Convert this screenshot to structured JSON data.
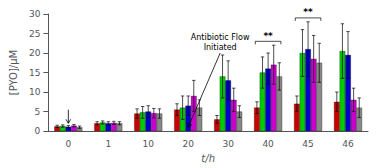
{
  "chart_data": {
    "type": "bar",
    "xlabel": "t/h",
    "ylabel": "[PYO]/μM",
    "categories": [
      "0",
      "1",
      "10",
      "20",
      "30",
      "40",
      "45",
      "46"
    ],
    "series": [
      {
        "color": "#cc0000",
        "values": [
          1.2,
          2.0,
          4.5,
          5.5,
          3.0,
          6.0,
          7.0,
          7.5
        ],
        "errors": [
          0.3,
          0.4,
          1.2,
          1.5,
          1.0,
          1.5,
          2.0,
          2.5
        ]
      },
      {
        "color": "#00cc00",
        "values": [
          1.3,
          2.2,
          4.8,
          6.0,
          14.0,
          15.0,
          20.0,
          20.5
        ],
        "errors": [
          0.3,
          0.4,
          1.5,
          3.0,
          5.5,
          4.0,
          6.0,
          7.0
        ]
      },
      {
        "color": "#0000cc",
        "values": [
          1.1,
          2.0,
          5.0,
          6.5,
          13.0,
          16.0,
          21.0,
          19.5
        ],
        "errors": [
          0.3,
          0.4,
          1.5,
          2.5,
          5.0,
          4.0,
          7.0,
          6.0
        ]
      },
      {
        "color": "#cc00cc",
        "values": [
          1.4,
          2.1,
          4.6,
          9.0,
          8.0,
          17.0,
          18.5,
          8.0
        ],
        "errors": [
          0.3,
          0.4,
          1.2,
          4.0,
          3.0,
          5.0,
          6.0,
          3.0
        ]
      },
      {
        "color": "#888888",
        "values": [
          1.0,
          2.0,
          4.5,
          6.0,
          5.0,
          14.0,
          17.5,
          6.0
        ],
        "errors": [
          0.3,
          0.4,
          1.2,
          2.0,
          1.5,
          3.5,
          5.0,
          2.5
        ]
      }
    ],
    "ylim": [
      0,
      30
    ],
    "yticks": [
      0,
      5,
      10,
      15,
      20,
      25,
      30
    ],
    "grid": false,
    "annotations": [
      {
        "text": "Antibiotic Flow\nInitiated",
        "category": "20"
      }
    ],
    "significance": [
      {
        "category": "40",
        "label": "**"
      },
      {
        "category": "45",
        "label": "**"
      }
    ]
  }
}
